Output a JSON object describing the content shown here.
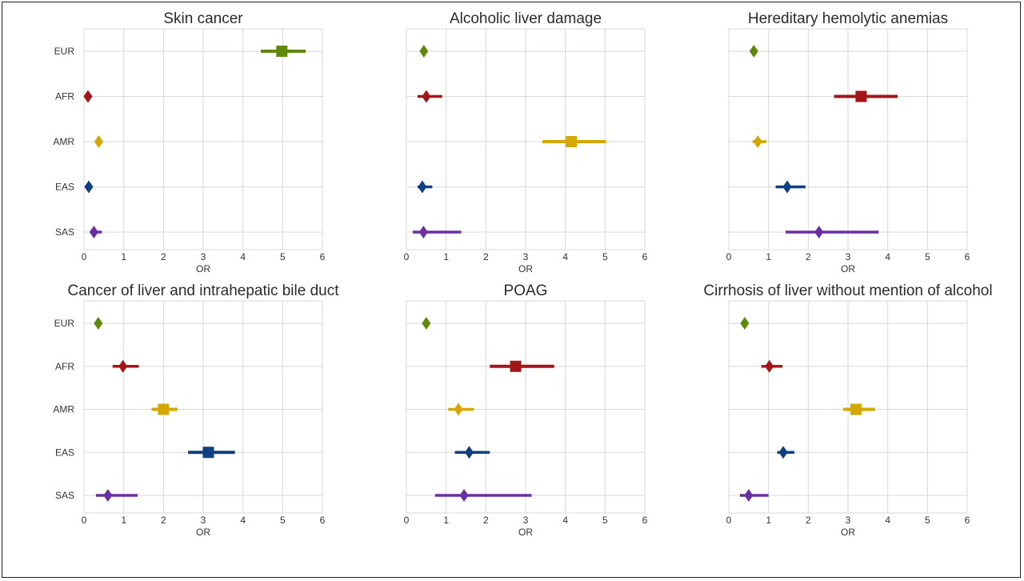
{
  "colors": {
    "EUR": "#5e8a0c",
    "AFR": "#a31518",
    "AMR": "#d4a800",
    "EAS": "#0f3f80",
    "SAS": "#6a2fa0",
    "grid": "#d8d8d8",
    "text": "#333333"
  },
  "chart_data": [
    {
      "type": "forest",
      "title": "Skin cancer",
      "xlabel": "OR",
      "xlim": [
        0,
        6
      ],
      "xticks": [
        "0",
        "1",
        "2",
        "3",
        "4",
        "5",
        "6"
      ],
      "categories": [
        "EUR",
        "AFR",
        "AMR",
        "EAS",
        "SAS"
      ],
      "points": [
        {
          "group": "EUR",
          "or": 4.98,
          "ci": [
            4.45,
            5.58
          ],
          "marker": "square"
        },
        {
          "group": "AFR",
          "or": 0.1,
          "ci": [
            0.06,
            0.14
          ],
          "marker": "diamond"
        },
        {
          "group": "AMR",
          "or": 0.37,
          "ci": [
            0.3,
            0.42
          ],
          "marker": "diamond"
        },
        {
          "group": "EAS",
          "or": 0.12,
          "ci": [
            0.08,
            0.16
          ],
          "marker": "diamond"
        },
        {
          "group": "SAS",
          "or": 0.25,
          "ci": [
            0.15,
            0.45
          ],
          "marker": "diamond"
        }
      ]
    },
    {
      "type": "forest",
      "title": "Alcoholic liver damage",
      "xlabel": "OR",
      "xlim": [
        0,
        6
      ],
      "xticks": [
        "0",
        "1",
        "2",
        "3",
        "4",
        "5",
        "6"
      ],
      "categories": [
        "EUR",
        "AFR",
        "AMR",
        "EAS",
        "SAS"
      ],
      "points": [
        {
          "group": "EUR",
          "or": 0.44,
          "ci": [
            0.38,
            0.5
          ],
          "marker": "diamond"
        },
        {
          "group": "AFR",
          "or": 0.5,
          "ci": [
            0.28,
            0.9
          ],
          "marker": "diamond"
        },
        {
          "group": "AMR",
          "or": 4.15,
          "ci": [
            3.42,
            5.02
          ],
          "marker": "square"
        },
        {
          "group": "EAS",
          "or": 0.4,
          "ci": [
            0.28,
            0.65
          ],
          "marker": "diamond"
        },
        {
          "group": "SAS",
          "or": 0.43,
          "ci": [
            0.16,
            1.38
          ],
          "marker": "diamond"
        }
      ]
    },
    {
      "type": "forest",
      "title": "Hereditary hemolytic anemias",
      "xlabel": "OR",
      "xlim": [
        0,
        6
      ],
      "xticks": [
        "0",
        "1",
        "2",
        "3",
        "4",
        "5",
        "6"
      ],
      "categories": [
        "EUR",
        "AFR",
        "AMR",
        "EAS",
        "SAS"
      ],
      "points": [
        {
          "group": "EUR",
          "or": 0.63,
          "ci": [
            0.57,
            0.7
          ],
          "marker": "diamond"
        },
        {
          "group": "AFR",
          "or": 3.33,
          "ci": [
            2.65,
            4.25
          ],
          "marker": "square"
        },
        {
          "group": "AMR",
          "or": 0.73,
          "ci": [
            0.6,
            0.95
          ],
          "marker": "diamond"
        },
        {
          "group": "EAS",
          "or": 1.47,
          "ci": [
            1.18,
            1.93
          ],
          "marker": "diamond"
        },
        {
          "group": "SAS",
          "or": 2.27,
          "ci": [
            1.43,
            3.77
          ],
          "marker": "diamond"
        }
      ]
    },
    {
      "type": "forest",
      "title": "Cancer of liver and intrahepatic bile duct",
      "xlabel": "OR",
      "xlim": [
        0,
        6
      ],
      "xticks": [
        "0",
        "1",
        "2",
        "3",
        "4",
        "5",
        "6"
      ],
      "categories": [
        "EUR",
        "AFR",
        "AMR",
        "EAS",
        "SAS"
      ],
      "points": [
        {
          "group": "EUR",
          "or": 0.36,
          "ci": [
            0.3,
            0.42
          ],
          "marker": "diamond"
        },
        {
          "group": "AFR",
          "or": 0.98,
          "ci": [
            0.72,
            1.38
          ],
          "marker": "diamond"
        },
        {
          "group": "AMR",
          "or": 2.0,
          "ci": [
            1.7,
            2.35
          ],
          "marker": "square"
        },
        {
          "group": "EAS",
          "or": 3.13,
          "ci": [
            2.62,
            3.8
          ],
          "marker": "square"
        },
        {
          "group": "SAS",
          "or": 0.6,
          "ci": [
            0.3,
            1.35
          ],
          "marker": "diamond"
        }
      ]
    },
    {
      "type": "forest",
      "title": "POAG",
      "xlabel": "OR",
      "xlim": [
        0,
        6
      ],
      "xticks": [
        "0",
        "1",
        "2",
        "3",
        "4",
        "5",
        "6"
      ],
      "categories": [
        "EUR",
        "AFR",
        "AMR",
        "EAS",
        "SAS"
      ],
      "points": [
        {
          "group": "EUR",
          "or": 0.5,
          "ci": [
            0.45,
            0.56
          ],
          "marker": "diamond"
        },
        {
          "group": "AFR",
          "or": 2.75,
          "ci": [
            2.1,
            3.72
          ],
          "marker": "square"
        },
        {
          "group": "AMR",
          "or": 1.31,
          "ci": [
            1.05,
            1.7
          ],
          "marker": "diamond"
        },
        {
          "group": "EAS",
          "or": 1.58,
          "ci": [
            1.22,
            2.1
          ],
          "marker": "diamond"
        },
        {
          "group": "SAS",
          "or": 1.45,
          "ci": [
            0.72,
            3.15
          ],
          "marker": "diamond"
        }
      ]
    },
    {
      "type": "forest",
      "title": "Cirrhosis of liver without mention of alcohol",
      "xlabel": "OR",
      "xlim": [
        0,
        6
      ],
      "xticks": [
        "0",
        "1",
        "2",
        "3",
        "4",
        "5",
        "6"
      ],
      "categories": [
        "EUR",
        "AFR",
        "AMR",
        "EAS",
        "SAS"
      ],
      "points": [
        {
          "group": "EUR",
          "or": 0.4,
          "ci": [
            0.34,
            0.46
          ],
          "marker": "diamond"
        },
        {
          "group": "AFR",
          "or": 1.02,
          "ci": [
            0.82,
            1.35
          ],
          "marker": "diamond"
        },
        {
          "group": "AMR",
          "or": 3.2,
          "ci": [
            2.88,
            3.68
          ],
          "marker": "square"
        },
        {
          "group": "EAS",
          "or": 1.37,
          "ci": [
            1.22,
            1.65
          ],
          "marker": "diamond"
        },
        {
          "group": "SAS",
          "or": 0.5,
          "ci": [
            0.28,
            1.0
          ],
          "marker": "diamond"
        }
      ]
    }
  ]
}
